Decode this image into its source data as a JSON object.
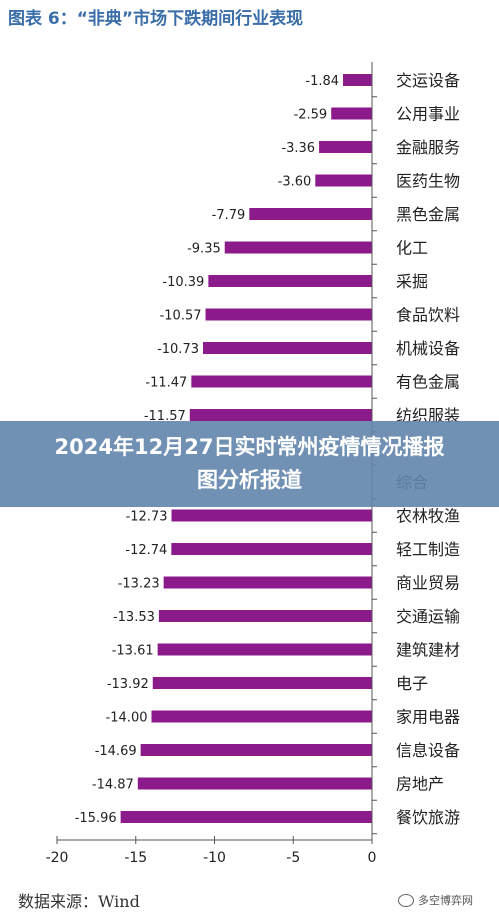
{
  "chart_data": {
    "type": "bar",
    "orientation": "horizontal",
    "title": "图表 6：“非典”市场下跌期间行业表现",
    "categories": [
      "交运设备",
      "公用事业",
      "金融服务",
      "医药生物",
      "黑色金属",
      "化工",
      "采掘",
      "食品饮料",
      "机械设备",
      "有色金属",
      "纺织服装",
      "",
      "综合",
      "农林牧渔",
      "轻工制造",
      "商业贸易",
      "交通运输",
      "建筑建材",
      "电子",
      "家用电器",
      "信息设备",
      "房地产",
      "餐饮旅游"
    ],
    "values": [
      -1.84,
      -2.59,
      -3.36,
      -3.6,
      -7.79,
      -9.35,
      -10.39,
      -10.57,
      -10.73,
      -11.47,
      -11.57,
      null,
      null,
      -12.73,
      -12.74,
      -13.23,
      -13.53,
      -13.61,
      -13.92,
      -14.0,
      -14.69,
      -14.87,
      -15.96
    ],
    "value_labels": [
      "-1.84",
      "-2.59",
      "-3.36",
      "-3.60",
      "-7.79",
      "-9.35",
      "-10.39",
      "-10.57",
      "-10.73",
      "-11.47",
      "-11.57",
      "",
      "",
      "-12.73",
      "-12.74",
      "-13.23",
      "-13.53",
      "-13.61",
      "-13.92",
      "-14.00",
      "-14.69",
      "-14.87",
      "-15.96"
    ],
    "xlim": [
      -20,
      0
    ],
    "xticks": [
      "-20",
      "-15",
      "-10",
      "-5",
      "0"
    ],
    "bar_color": "#8b1a8b",
    "label_color": "#222222",
    "grid": false,
    "source": "数据来源：Wind"
  },
  "watermark": "多空博弈网",
  "overlay": {
    "text": "2024年12月27日实时常州疫情情况播报图分析报道",
    "background": "#6084ac"
  }
}
